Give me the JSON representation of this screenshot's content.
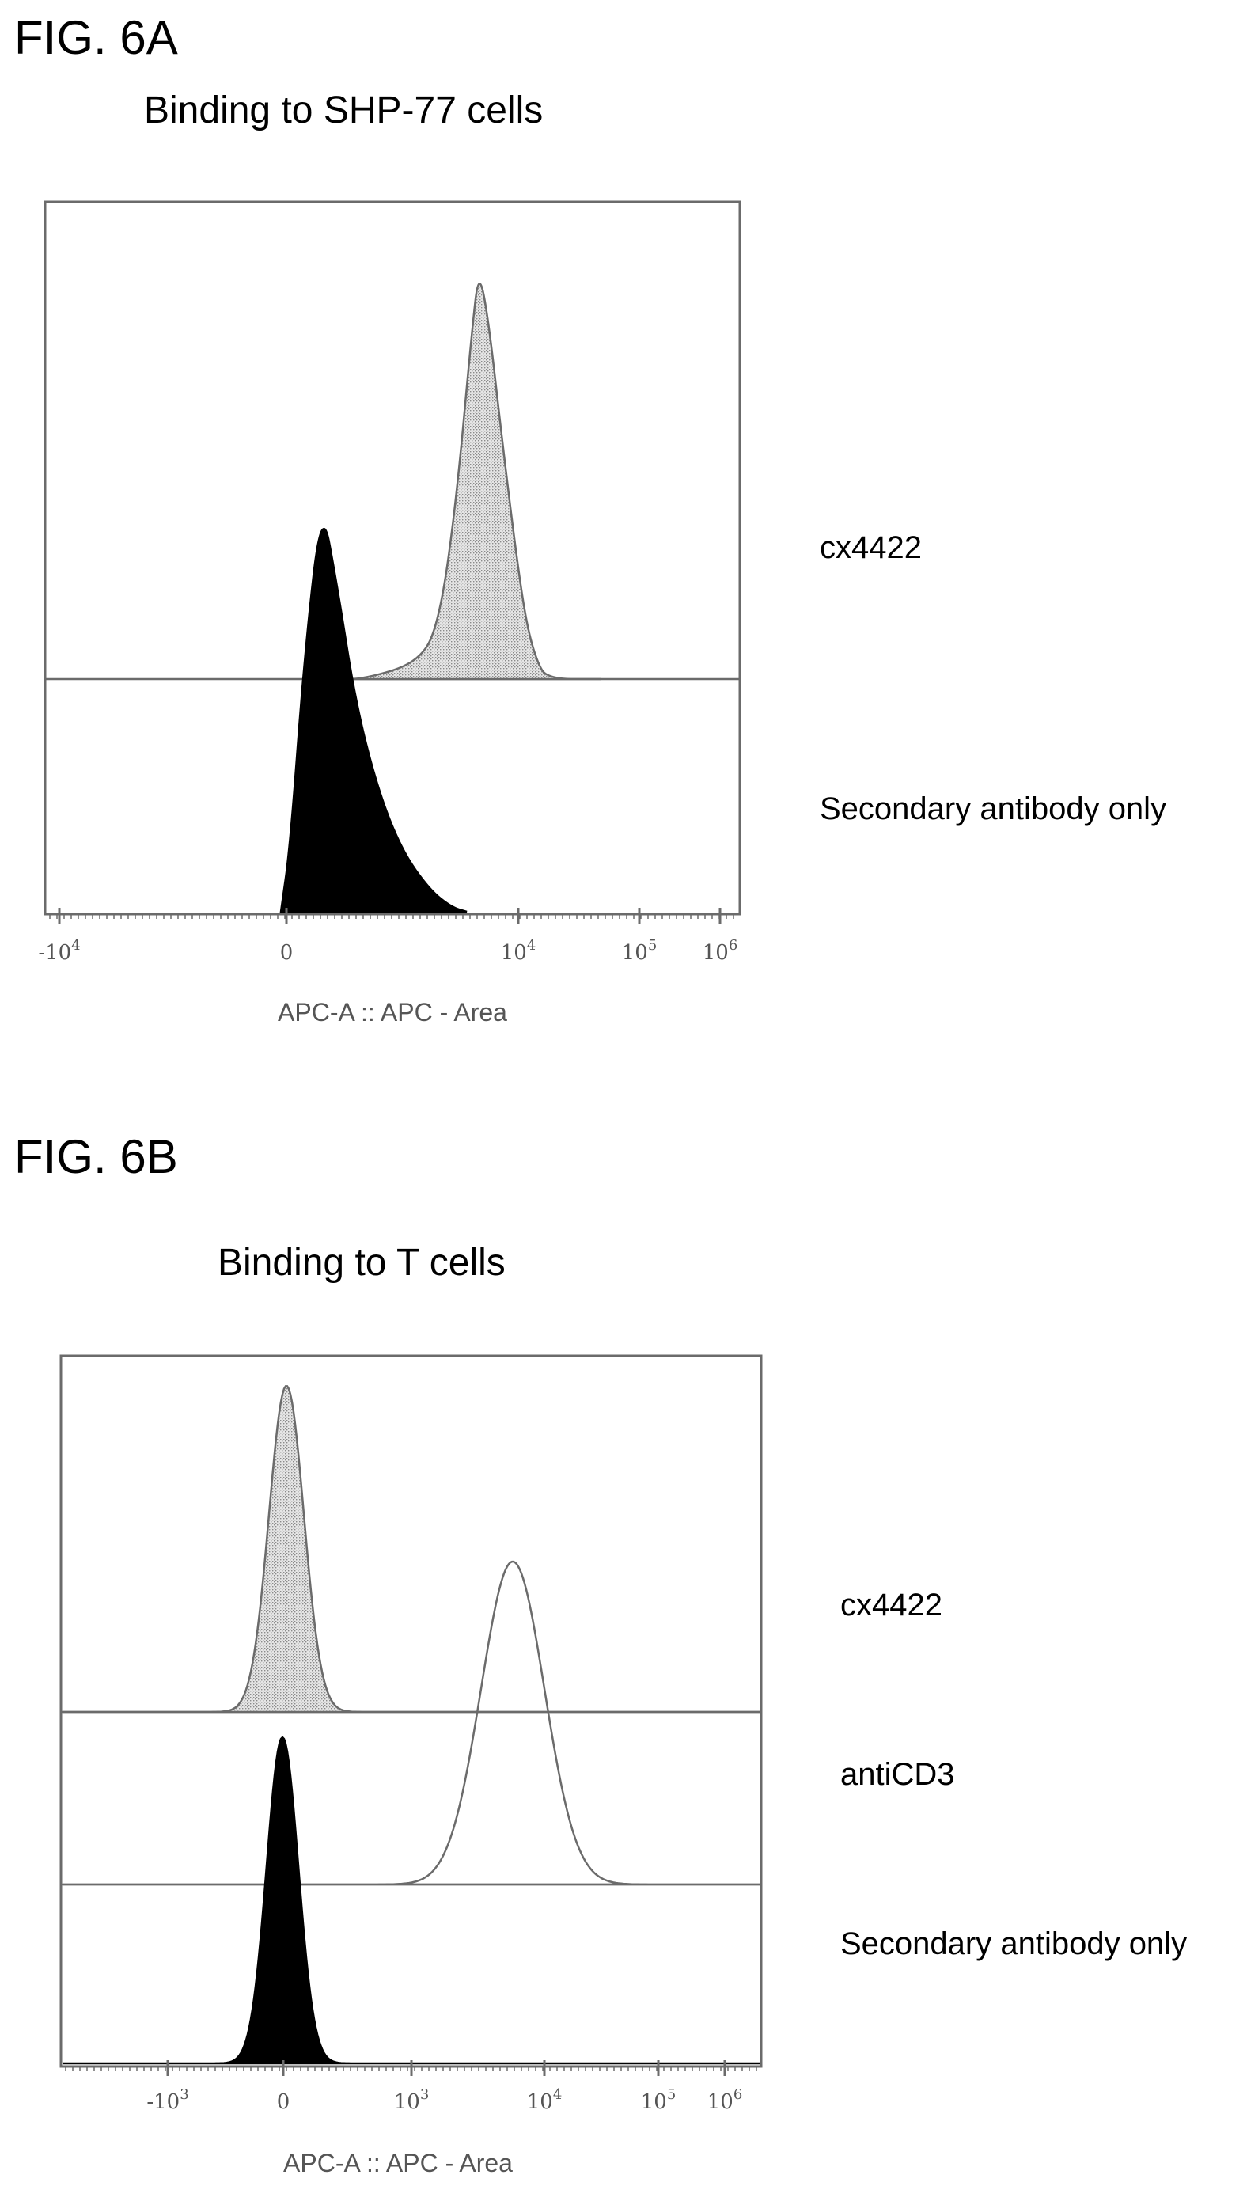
{
  "figures": [
    {
      "label": "FIG. 6A",
      "title": "Binding to SHP-77 cells",
      "legend": [
        "cx4422",
        "Secondary antibody only"
      ]
    },
    {
      "label": "FIG. 6B",
      "title": "Binding to T cells",
      "legend": [
        "cx4422",
        "antiCD3",
        "Secondary antibody only"
      ]
    }
  ],
  "chart_data": [
    {
      "type": "area",
      "title": "Binding to SHP-77 cells",
      "xlabel": "APC-A :: APC - Area",
      "ylabel": "",
      "x_scale": "biexponential",
      "x_ticks": [
        {
          "base": "-10",
          "exp": "4"
        },
        {
          "base": "0",
          "exp": ""
        },
        {
          "base": "10",
          "exp": "4"
        },
        {
          "base": "10",
          "exp": "5"
        },
        {
          "base": "10",
          "exp": "6"
        }
      ],
      "x_tick_values": [
        -10000,
        0,
        10000,
        100000,
        1000000
      ],
      "series": [
        {
          "name": "cx4422",
          "fill": "stippled-gray",
          "offset_row": 0,
          "peak_x": 6500,
          "peak_height": 0.95,
          "points": [
            [
              2000,
              0.0
            ],
            [
              3000,
              0.04
            ],
            [
              4000,
              0.18
            ],
            [
              5000,
              0.55
            ],
            [
              6500,
              0.95
            ],
            [
              8000,
              0.8
            ],
            [
              12000,
              0.45
            ],
            [
              20000,
              0.15
            ],
            [
              40000,
              0.0
            ]
          ]
        },
        {
          "name": "Secondary antibody only",
          "fill": "black",
          "offset_row": 1,
          "peak_x": 600,
          "peak_height": 0.95,
          "points": [
            [
              -200,
              0.0
            ],
            [
              0,
              0.15
            ],
            [
              300,
              0.6
            ],
            [
              600,
              0.95
            ],
            [
              1000,
              0.75
            ],
            [
              1600,
              0.45
            ],
            [
              2600,
              0.2
            ],
            [
              4200,
              0.05
            ],
            [
              5500,
              0.0
            ]
          ]
        }
      ]
    },
    {
      "type": "area",
      "title": "Binding to T cells",
      "xlabel": "APC-A :: APC - Area",
      "ylabel": "",
      "x_scale": "biexponential",
      "x_ticks": [
        {
          "base": "-10",
          "exp": "3"
        },
        {
          "base": "0",
          "exp": ""
        },
        {
          "base": "10",
          "exp": "3"
        },
        {
          "base": "10",
          "exp": "4"
        },
        {
          "base": "10",
          "exp": "5"
        },
        {
          "base": "10",
          "exp": "6"
        }
      ],
      "x_tick_values": [
        -1000,
        0,
        1000,
        10000,
        100000,
        1000000
      ],
      "series": [
        {
          "name": "cx4422",
          "fill": "stippled-gray",
          "offset_row": 0,
          "peak_x": 0,
          "peak_height": 0.95
        },
        {
          "name": "antiCD3",
          "fill": "none",
          "offset_row": 1,
          "peak_x": 5000,
          "peak_height": 0.95
        },
        {
          "name": "Secondary antibody only",
          "fill": "black",
          "offset_row": 2,
          "peak_x": 0,
          "peak_height": 0.95
        }
      ]
    }
  ],
  "colors": {
    "dark_fill": "#000000",
    "light_fill": "#d4d4d4",
    "outline": "#6b6b6b",
    "axis_text": "#555555"
  }
}
